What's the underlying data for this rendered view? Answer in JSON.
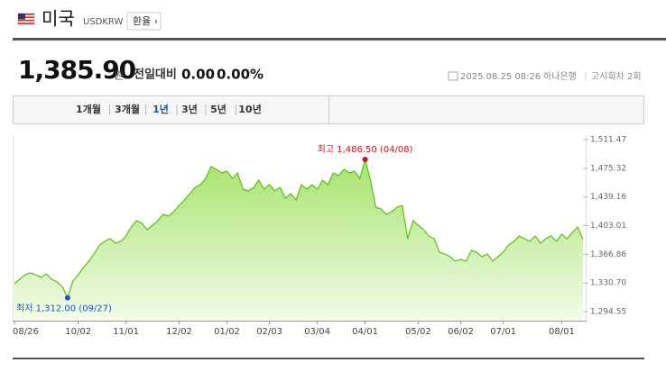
{
  "header": {
    "title": "미국",
    "code": "USDKRW",
    "button": "환율"
  },
  "quote": {
    "price": "1,385.90",
    "unit": "원",
    "change_label": "전일대비",
    "change": "0.00",
    "change_pct": "0.00%",
    "date": "2025.08.25 08:26",
    "bank": "하나은행",
    "round": "고시회차 2회"
  },
  "tabs": {
    "items": [
      "1개월",
      "3개월",
      "1년",
      "3년",
      "5년",
      "10년"
    ],
    "active": 2
  },
  "chart_data": {
    "type": "area",
    "color": "#5cbf14",
    "categories": [
      "08/26",
      null,
      null,
      null,
      null,
      null,
      null,
      null,
      null,
      null,
      null,
      null,
      "10/02",
      null,
      null,
      null,
      null,
      null,
      null,
      null,
      null,
      "11/01",
      null,
      null,
      null,
      null,
      null,
      null,
      null,
      null,
      null,
      "12/02",
      null,
      null,
      null,
      null,
      null,
      null,
      null,
      null,
      "01/02",
      null,
      null,
      null,
      null,
      null,
      null,
      null,
      "02/03",
      null,
      null,
      null,
      null,
      null,
      null,
      null,
      null,
      "03/04",
      null,
      null,
      null,
      null,
      null,
      null,
      null,
      null,
      "04/01",
      null,
      null,
      null,
      null,
      null,
      null,
      null,
      null,
      null,
      "05/02",
      null,
      null,
      null,
      null,
      null,
      null,
      null,
      "06/02",
      null,
      null,
      null,
      null,
      null,
      null,
      null,
      "07/01",
      null,
      null,
      null,
      null,
      null,
      null,
      null,
      null,
      null,
      null,
      "08/01",
      null,
      null,
      null,
      null
    ],
    "values": [
      1329.8,
      1335.4,
      1341.1,
      1343.4,
      1341.1,
      1337.7,
      1342.3,
      1335.4,
      1332.0,
      1326.4,
      1312.0,
      1333.2,
      1341.1,
      1350.2,
      1358.2,
      1367.2,
      1378.6,
      1383.1,
      1386.5,
      1380.9,
      1383.1,
      1390.0,
      1401.3,
      1409.3,
      1405.9,
      1397.9,
      1403.6,
      1409.3,
      1417.2,
      1415.0,
      1420.6,
      1428.6,
      1435.4,
      1443.3,
      1451.3,
      1454.7,
      1462.6,
      1477.4,
      1474.0,
      1469.4,
      1471.7,
      1462.6,
      1469.4,
      1449.0,
      1446.7,
      1451.3,
      1460.4,
      1449.0,
      1454.7,
      1446.7,
      1451.3,
      1437.7,
      1443.3,
      1435.4,
      1454.7,
      1449.0,
      1454.7,
      1449.0,
      1460.4,
      1454.7,
      1469.4,
      1466.0,
      1474.0,
      1469.4,
      1471.7,
      1462.6,
      1486.5,
      1460.4,
      1426.3,
      1424.0,
      1417.2,
      1420.6,
      1426.3,
      1428.6,
      1386.5,
      1409.3,
      1403.6,
      1397.9,
      1390.0,
      1386.5,
      1369.5,
      1367.2,
      1363.8,
      1358.2,
      1360.4,
      1358.2,
      1371.8,
      1369.5,
      1363.8,
      1367.2,
      1358.2,
      1363.8,
      1369.5,
      1378.6,
      1383.1,
      1390.0,
      1386.5,
      1383.1,
      1390.0,
      1380.9,
      1386.5,
      1390.0,
      1383.1,
      1392.2,
      1386.5,
      1394.5,
      1401.3,
      1385.9
    ],
    "value_labels": [
      null,
      null,
      null,
      null,
      null,
      null,
      null,
      null,
      null,
      null,
      "최저 1,312.00 (09/27)",
      null,
      null,
      null,
      null,
      null,
      null,
      null,
      null,
      null,
      null,
      null,
      null,
      null,
      null,
      null,
      null,
      null,
      null,
      null,
      null,
      null,
      null,
      null,
      null,
      null,
      null,
      null,
      null,
      null,
      null,
      null,
      null,
      null,
      null,
      null,
      null,
      null,
      null,
      null,
      null,
      null,
      null,
      null,
      null,
      null,
      null,
      null,
      null,
      null,
      null,
      null,
      null,
      null,
      null,
      null,
      "최고 1,486.50 (04/08)",
      null,
      null,
      null,
      null,
      null,
      null,
      null,
      null,
      null,
      null,
      null,
      null,
      null,
      null,
      null,
      null,
      null,
      null,
      null,
      null,
      null,
      null,
      null,
      null,
      null,
      null,
      null,
      null,
      null,
      null,
      null,
      null,
      null,
      null,
      null,
      null,
      null,
      null,
      null,
      null,
      null
    ],
    "ylim": [
      1294.55,
      1511.47
    ],
    "yticks": [
      {
        "value": 1511.47,
        "label": "1,511.47"
      },
      {
        "value": 1475.32,
        "label": "1,475.32"
      },
      {
        "value": 1439.16,
        "label": "1,439.16"
      },
      {
        "value": 1403.01,
        "label": "1,403.01"
      },
      {
        "value": 1366.86,
        "label": "1,366.86"
      },
      {
        "value": 1330.7,
        "label": "1,330.70"
      },
      {
        "value": 1294.55,
        "label": "1,294.55"
      }
    ],
    "grid": false
  }
}
